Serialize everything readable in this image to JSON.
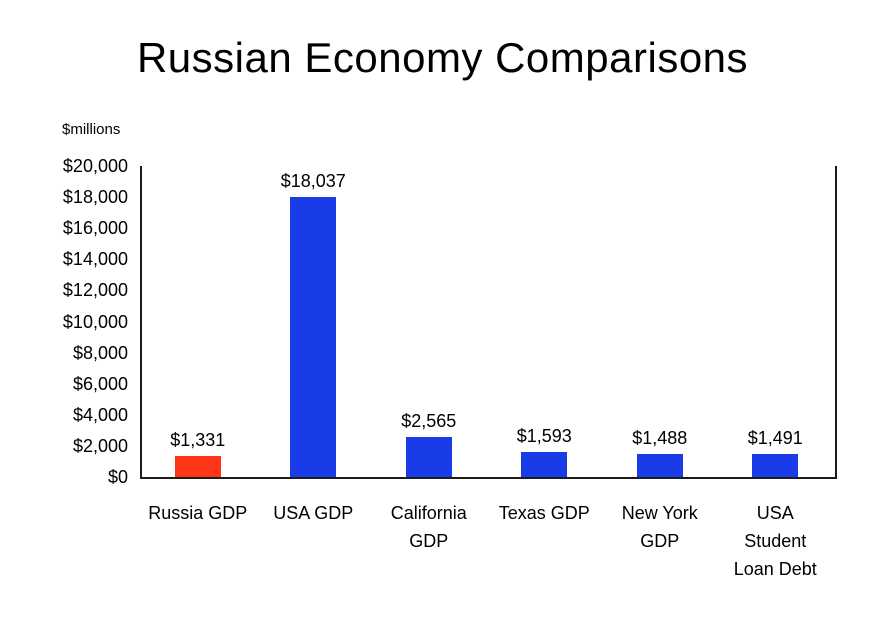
{
  "chart_data": {
    "type": "bar",
    "title": "Russian Economy Comparisons",
    "unit_label": "$millions",
    "categories": [
      "Russia GDP",
      "USA GDP",
      "California GDP",
      "Texas GDP",
      "New York GDP",
      "USA Student Loan Debt"
    ],
    "category_label_lines": [
      [
        "Russia GDP"
      ],
      [
        "USA GDP"
      ],
      [
        "California",
        "GDP"
      ],
      [
        "Texas GDP"
      ],
      [
        "New York",
        "GDP"
      ],
      [
        "USA",
        "Student",
        "Loan Debt"
      ]
    ],
    "values": [
      1331,
      18037,
      2565,
      1593,
      1488,
      1491
    ],
    "data_labels": [
      "$1,331",
      "$18,037",
      "$2,565",
      "$1,593",
      "$1,488",
      "$1,491"
    ],
    "bar_colors": [
      "#ff3517",
      "#1a3ce8",
      "#1a3ce8",
      "#1a3ce8",
      "#1a3ce8",
      "#1a3ce8"
    ],
    "ylim": [
      0,
      20000
    ],
    "ytick_step": 2000,
    "ytick_labels": [
      "$0",
      "$2,000",
      "$4,000",
      "$6,000",
      "$8,000",
      "$10,000",
      "$12,000",
      "$14,000",
      "$16,000",
      "$18,000",
      "$20,000"
    ],
    "grid": false,
    "legend": "none",
    "xlabel": "",
    "ylabel": ""
  }
}
